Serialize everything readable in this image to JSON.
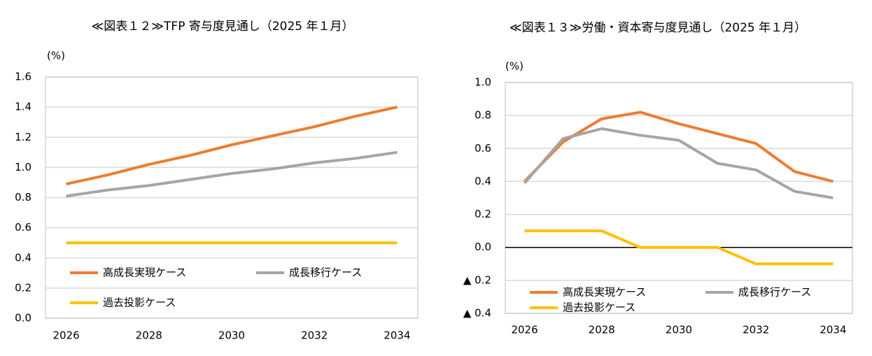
{
  "chart_data": [
    {
      "type": "line",
      "title": "≪図表１２≫TFP 寄与度見通し（2025 年１月）",
      "y_label": "(%)",
      "x": [
        2026,
        2027,
        2028,
        2029,
        2030,
        2031,
        2032,
        2033,
        2034
      ],
      "xlim": [
        2025.5,
        2034.5
      ],
      "xticks": [
        2026,
        2028,
        2030,
        2032,
        2034
      ],
      "ylim": [
        0,
        1.6
      ],
      "yticks": [
        {
          "value": 0,
          "label": "0.0"
        },
        0.2,
        0.4,
        0.6,
        0.8,
        {
          "value": 1,
          "label": "1.0"
        },
        1.2,
        1.4,
        1.6
      ],
      "grid": true,
      "series": [
        {
          "name": "高成長実現ケース",
          "color": "#ed7d31",
          "values": [
            0.89,
            0.95,
            1.02,
            1.08,
            1.15,
            1.21,
            1.27,
            1.34,
            1.4
          ]
        },
        {
          "name": "成長移行ケース",
          "color": "#a5a5a5",
          "values": [
            0.81,
            0.85,
            0.88,
            0.92,
            0.96,
            0.99,
            1.03,
            1.06,
            1.1
          ]
        },
        {
          "name": "過去投影ケース",
          "color": "#ffc000",
          "values": [
            0.5,
            0.5,
            0.5,
            0.5,
            0.5,
            0.5,
            0.5,
            0.5,
            0.5
          ]
        }
      ]
    },
    {
      "type": "line",
      "title": "≪図表１３≫労働・資本寄与度見通し（2025 年１月）",
      "y_label": "(%)",
      "x": [
        2026,
        2027,
        2028,
        2029,
        2030,
        2031,
        2032,
        2033,
        2034
      ],
      "xlim": [
        2025.5,
        2034.5
      ],
      "xticks": [
        2026,
        2028,
        2030,
        2032,
        2034
      ],
      "ylim": [
        -0.4,
        1.0
      ],
      "yticks": [
        {
          "value": -0.4,
          "label": "▲ 0.4"
        },
        {
          "value": -0.2,
          "label": "▲ 0.2"
        },
        {
          "value": 0,
          "label": "0.0"
        },
        0.2,
        0.4,
        0.6,
        0.8,
        {
          "value": 1,
          "label": "1.0"
        }
      ],
      "grid": true,
      "series": [
        {
          "name": "高成長実現ケース",
          "color": "#ed7d31",
          "values": [
            0.4,
            0.64,
            0.78,
            0.82,
            0.75,
            0.69,
            0.63,
            0.46,
            0.4
          ]
        },
        {
          "name": "成長移行ケース",
          "color": "#a5a5a5",
          "values": [
            0.39,
            0.66,
            0.72,
            0.68,
            0.65,
            0.51,
            0.47,
            0.34,
            0.3
          ]
        },
        {
          "name": "過去投影ケース",
          "color": "#ffc000",
          "values": [
            0.1,
            0.1,
            0.1,
            0,
            0,
            0,
            -0.1,
            -0.1,
            -0.1
          ]
        }
      ]
    }
  ]
}
